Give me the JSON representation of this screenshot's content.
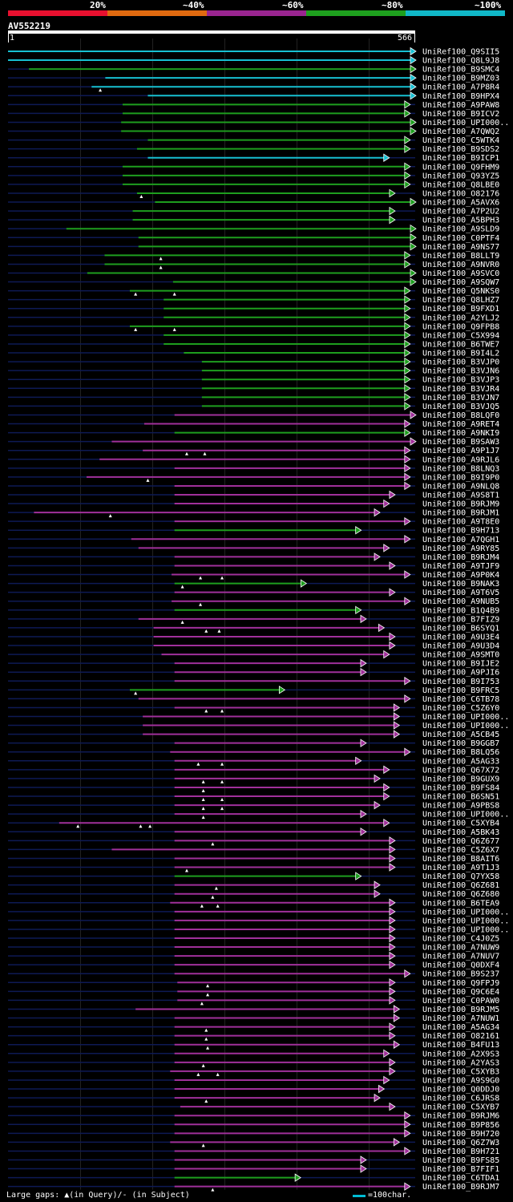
{
  "scale": {
    "labels": [
      "20%",
      "~40%",
      "~60%",
      "~80%",
      "~100%"
    ],
    "colors": [
      "#e8102f",
      "#e06a10",
      "#9a2590",
      "#1ea01e",
      "#10b8c8"
    ]
  },
  "query": {
    "id": "AV552219",
    "start": "1",
    "end": "566",
    "length": 566
  },
  "legend": {
    "text": "Large gaps: ▲(in Query)/- (in Subject)",
    "scale_text": "=100char."
  },
  "colors": {
    "cyan": "#17bfd1",
    "green": "#1e9e1e",
    "magenta": "#a0309a",
    "navy": "#0e1a55",
    "grid": "#222222"
  },
  "hits": [
    {
      "label": "UniRef100_Q9SII5",
      "s": 1,
      "e": 566,
      "c": "cyan",
      "m": []
    },
    {
      "label": "UniRef100_Q8L9J8",
      "s": 1,
      "e": 566,
      "c": "cyan",
      "m": []
    },
    {
      "label": "UniRef100_B9SMC4",
      "s": 30,
      "e": 566,
      "c": "green",
      "m": []
    },
    {
      "label": "UniRef100_B9MZ03",
      "s": 136,
      "e": 566,
      "c": "cyan",
      "m": []
    },
    {
      "label": "UniRef100_A7P8R4",
      "s": 117,
      "e": 566,
      "c": "cyan",
      "m": [
        129
      ]
    },
    {
      "label": "UniRef100_B9HPX4",
      "s": 195,
      "e": 566,
      "c": "cyan",
      "m": []
    },
    {
      "label": "UniRef100_A9PAW8",
      "s": 160,
      "e": 558,
      "c": "green",
      "m": []
    },
    {
      "label": "UniRef100_B9ICV2",
      "s": 160,
      "e": 558,
      "c": "green",
      "m": []
    },
    {
      "label": "UniRef100_UPI000..",
      "s": 158,
      "e": 566,
      "c": "green",
      "m": []
    },
    {
      "label": "UniRef100_A7QWQ2",
      "s": 158,
      "e": 566,
      "c": "green",
      "m": []
    },
    {
      "label": "UniRef100_C5WTK4",
      "s": 195,
      "e": 558,
      "c": "green",
      "m": []
    },
    {
      "label": "UniRef100_B9SDS2",
      "s": 180,
      "e": 558,
      "c": "green",
      "m": []
    },
    {
      "label": "UniRef100_B9ICP1",
      "s": 195,
      "e": 529,
      "c": "cyan",
      "m": []
    },
    {
      "label": "UniRef100_Q9FHM9",
      "s": 160,
      "e": 558,
      "c": "green",
      "m": []
    },
    {
      "label": "UniRef100_Q93YZ5",
      "s": 160,
      "e": 558,
      "c": "green",
      "m": []
    },
    {
      "label": "UniRef100_Q8LBE0",
      "s": 160,
      "e": 558,
      "c": "green",
      "m": []
    },
    {
      "label": "UniRef100_O82176",
      "s": 180,
      "e": 537,
      "c": "green",
      "m": [
        186
      ]
    },
    {
      "label": "UniRef100_A5AVX6",
      "s": 205,
      "e": 566,
      "c": "green",
      "m": []
    },
    {
      "label": "UniRef100_A7P2U2",
      "s": 174,
      "e": 537,
      "c": "green",
      "m": []
    },
    {
      "label": "UniRef100_A5BPH3",
      "s": 174,
      "e": 537,
      "c": "green",
      "m": []
    },
    {
      "label": "UniRef100_A9SLD9",
      "s": 82,
      "e": 566,
      "c": "green",
      "m": []
    },
    {
      "label": "UniRef100_C0PTF4",
      "s": 182,
      "e": 566,
      "c": "green",
      "m": []
    },
    {
      "label": "UniRef100_A9NS77",
      "s": 182,
      "e": 566,
      "c": "green",
      "m": []
    },
    {
      "label": "UniRef100_B8LLT9",
      "s": 135,
      "e": 558,
      "c": "green",
      "m": [
        213
      ]
    },
    {
      "label": "UniRef100_A9NVR0",
      "s": 135,
      "e": 558,
      "c": "green",
      "m": [
        213
      ]
    },
    {
      "label": "UniRef100_A9SVC0",
      "s": 111,
      "e": 566,
      "c": "green",
      "m": []
    },
    {
      "label": "UniRef100_A9SQW7",
      "s": 230,
      "e": 566,
      "c": "green",
      "m": []
    },
    {
      "label": "UniRef100_Q5NKS0",
      "s": 170,
      "e": 558,
      "c": "green",
      "m": [
        178,
        232
      ]
    },
    {
      "label": "UniRef100_Q8LHZ7",
      "s": 217,
      "e": 558,
      "c": "green",
      "m": []
    },
    {
      "label": "UniRef100_B9FXD1",
      "s": 217,
      "e": 558,
      "c": "green",
      "m": []
    },
    {
      "label": "UniRef100_A2YLJ2",
      "s": 217,
      "e": 558,
      "c": "green",
      "m": []
    },
    {
      "label": "UniRef100_Q9FPB8",
      "s": 170,
      "e": 558,
      "c": "green",
      "m": [
        178,
        232
      ]
    },
    {
      "label": "UniRef100_C5X994",
      "s": 217,
      "e": 558,
      "c": "green",
      "m": []
    },
    {
      "label": "UniRef100_B6TWE7",
      "s": 217,
      "e": 558,
      "c": "green",
      "m": []
    },
    {
      "label": "UniRef100_B9I4L2",
      "s": 245,
      "e": 558,
      "c": "green",
      "m": []
    },
    {
      "label": "UniRef100_B3VJP0",
      "s": 270,
      "e": 558,
      "c": "green",
      "m": []
    },
    {
      "label": "UniRef100_B3VJN6",
      "s": 270,
      "e": 558,
      "c": "green",
      "m": []
    },
    {
      "label": "UniRef100_B3VJP3",
      "s": 270,
      "e": 558,
      "c": "green",
      "m": []
    },
    {
      "label": "UniRef100_B3VJR4",
      "s": 270,
      "e": 558,
      "c": "green",
      "m": []
    },
    {
      "label": "UniRef100_B3VJN7",
      "s": 270,
      "e": 558,
      "c": "green",
      "m": []
    },
    {
      "label": "UniRef100_B3VJQ5",
      "s": 270,
      "e": 558,
      "c": "green",
      "m": []
    },
    {
      "label": "UniRef100_B8LQF0",
      "s": 232,
      "e": 566,
      "c": "magenta",
      "m": []
    },
    {
      "label": "UniRef100_A9RET4",
      "s": 190,
      "e": 558,
      "c": "magenta",
      "m": []
    },
    {
      "label": "UniRef100_A9NKI9",
      "s": 232,
      "e": 558,
      "c": "green",
      "m": []
    },
    {
      "label": "UniRef100_B9SAW3",
      "s": 145,
      "e": 566,
      "c": "magenta",
      "m": []
    },
    {
      "label": "UniRef100_A9P1J7",
      "s": 188,
      "e": 558,
      "c": "magenta",
      "m": [
        249,
        274
      ]
    },
    {
      "label": "UniRef100_A9RJL6",
      "s": 128,
      "e": 558,
      "c": "magenta",
      "m": []
    },
    {
      "label": "UniRef100_B8LNQ3",
      "s": 232,
      "e": 558,
      "c": "magenta",
      "m": []
    },
    {
      "label": "UniRef100_B9I9P0",
      "s": 110,
      "e": 558,
      "c": "magenta",
      "m": [
        195
      ]
    },
    {
      "label": "UniRef100_A9NLQ8",
      "s": 232,
      "e": 558,
      "c": "magenta",
      "m": []
    },
    {
      "label": "UniRef100_A9S8T1",
      "s": 232,
      "e": 537,
      "c": "magenta",
      "m": []
    },
    {
      "label": "UniRef100_B9RJM9",
      "s": 232,
      "e": 529,
      "c": "magenta",
      "m": []
    },
    {
      "label": "UniRef100_B9RJM1",
      "s": 37,
      "e": 516,
      "c": "magenta",
      "m": [
        143
      ]
    },
    {
      "label": "UniRef100_A9T8E0",
      "s": 232,
      "e": 558,
      "c": "magenta",
      "m": []
    },
    {
      "label": "UniRef100_B9H713",
      "s": 232,
      "e": 490,
      "c": "green",
      "m": []
    },
    {
      "label": "UniRef100_A7QGH1",
      "s": 172,
      "e": 558,
      "c": "magenta",
      "m": []
    },
    {
      "label": "UniRef100_A9RY85",
      "s": 182,
      "e": 529,
      "c": "magenta",
      "m": []
    },
    {
      "label": "UniRef100_B9RJM4",
      "s": 232,
      "e": 516,
      "c": "magenta",
      "m": []
    },
    {
      "label": "UniRef100_A9TJF9",
      "s": 232,
      "e": 537,
      "c": "magenta",
      "m": []
    },
    {
      "label": "UniRef100_A9P0K4",
      "s": 228,
      "e": 558,
      "c": "magenta",
      "m": [
        268,
        298
      ]
    },
    {
      "label": "UniRef100_B9NAK3",
      "s": 232,
      "e": 414,
      "c": "green",
      "m": [
        243
      ]
    },
    {
      "label": "UniRef100_A9T6V5",
      "s": 232,
      "e": 537,
      "c": "magenta",
      "m": []
    },
    {
      "label": "UniRef100_A9NUB5",
      "s": 228,
      "e": 558,
      "c": "magenta",
      "m": [
        268
      ]
    },
    {
      "label": "UniRef100_B1Q4B9",
      "s": 232,
      "e": 490,
      "c": "green",
      "m": []
    },
    {
      "label": "UniRef100_B7FIZ9",
      "s": 182,
      "e": 497,
      "c": "magenta",
      "m": [
        243
      ]
    },
    {
      "label": "UniRef100_B6SYQ1",
      "s": 203,
      "e": 522,
      "c": "magenta",
      "m": [
        276,
        294
      ]
    },
    {
      "label": "UniRef100_A9U3E4",
      "s": 203,
      "e": 537,
      "c": "magenta",
      "m": []
    },
    {
      "label": "UniRef100_A9U3D4",
      "s": 203,
      "e": 537,
      "c": "magenta",
      "m": []
    },
    {
      "label": "UniRef100_A9SMT0",
      "s": 214,
      "e": 529,
      "c": "magenta",
      "m": []
    },
    {
      "label": "UniRef100_B9IJE2",
      "s": 232,
      "e": 497,
      "c": "magenta",
      "m": []
    },
    {
      "label": "UniRef100_A9PJI6",
      "s": 232,
      "e": 497,
      "c": "magenta",
      "m": []
    },
    {
      "label": "UniRef100_B9I753",
      "s": 232,
      "e": 558,
      "c": "magenta",
      "m": []
    },
    {
      "label": "UniRef100_B9FRC5",
      "s": 170,
      "e": 384,
      "c": "green",
      "m": [
        178
      ]
    },
    {
      "label": "UniRef100_C6TB78",
      "s": 182,
      "e": 558,
      "c": "magenta",
      "m": []
    },
    {
      "label": "UniRef100_C5Z6Y0",
      "s": 232,
      "e": 543,
      "c": "magenta",
      "m": [
        276,
        298
      ]
    },
    {
      "label": "UniRef100_UPI000..",
      "s": 188,
      "e": 543,
      "c": "magenta",
      "m": []
    },
    {
      "label": "UniRef100_UPI000..",
      "s": 188,
      "e": 543,
      "c": "magenta",
      "m": []
    },
    {
      "label": "UniRef100_A5CB45",
      "s": 188,
      "e": 543,
      "c": "magenta",
      "m": []
    },
    {
      "label": "UniRef100_B9GGB7",
      "s": 232,
      "e": 497,
      "c": "magenta",
      "m": []
    },
    {
      "label": "UniRef100_B8LQ56",
      "s": 226,
      "e": 558,
      "c": "magenta",
      "m": []
    },
    {
      "label": "UniRef100_A5AG33",
      "s": 232,
      "e": 490,
      "c": "magenta",
      "m": [
        265,
        298
      ]
    },
    {
      "label": "UniRef100_Q67X72",
      "s": 232,
      "e": 529,
      "c": "magenta",
      "m": []
    },
    {
      "label": "UniRef100_B9GUX9",
      "s": 232,
      "e": 516,
      "c": "magenta",
      "m": [
        272,
        298
      ]
    },
    {
      "label": "UniRef100_B9FS84",
      "s": 232,
      "e": 529,
      "c": "magenta",
      "m": [
        272
      ]
    },
    {
      "label": "UniRef100_B6SN51",
      "s": 232,
      "e": 529,
      "c": "magenta",
      "m": [
        272,
        298
      ]
    },
    {
      "label": "UniRef100_A9PBS8",
      "s": 232,
      "e": 516,
      "c": "magenta",
      "m": [
        272,
        298
      ]
    },
    {
      "label": "UniRef100_UPI000..",
      "s": 232,
      "e": 497,
      "c": "magenta",
      "m": [
        272
      ]
    },
    {
      "label": "UniRef100_C5XYB4",
      "s": 72,
      "e": 529,
      "c": "magenta",
      "m": [
        98,
        185,
        198
      ]
    },
    {
      "label": "UniRef100_A5BK43",
      "s": 232,
      "e": 497,
      "c": "magenta",
      "m": []
    },
    {
      "label": "UniRef100_Q6Z677",
      "s": 232,
      "e": 537,
      "c": "magenta",
      "m": [
        285
      ]
    },
    {
      "label": "UniRef100_C5Z6X7",
      "s": 145,
      "e": 537,
      "c": "magenta",
      "m": []
    },
    {
      "label": "UniRef100_B8AIT6",
      "s": 232,
      "e": 537,
      "c": "magenta",
      "m": []
    },
    {
      "label": "UniRef100_A9T1J3",
      "s": 232,
      "e": 537,
      "c": "magenta",
      "m": [
        249
      ]
    },
    {
      "label": "UniRef100_Q7YX58",
      "s": 232,
      "e": 490,
      "c": "green",
      "m": []
    },
    {
      "label": "UniRef100_Q6Z681",
      "s": 232,
      "e": 516,
      "c": "magenta",
      "m": [
        290
      ]
    },
    {
      "label": "UniRef100_Q6Z680",
      "s": 232,
      "e": 516,
      "c": "magenta",
      "m": [
        285
      ]
    },
    {
      "label": "UniRef100_B6TEA9",
      "s": 226,
      "e": 537,
      "c": "magenta",
      "m": [
        270,
        292
      ]
    },
    {
      "label": "UniRef100_UPI000..",
      "s": 232,
      "e": 537,
      "c": "magenta",
      "m": []
    },
    {
      "label": "UniRef100_UPI000..",
      "s": 232,
      "e": 537,
      "c": "magenta",
      "m": []
    },
    {
      "label": "UniRef100_UPI000..",
      "s": 232,
      "e": 537,
      "c": "magenta",
      "m": []
    },
    {
      "label": "UniRef100_C4J0Z5",
      "s": 232,
      "e": 537,
      "c": "magenta",
      "m": []
    },
    {
      "label": "UniRef100_A7NUW9",
      "s": 232,
      "e": 537,
      "c": "magenta",
      "m": []
    },
    {
      "label": "UniRef100_A7NUV7",
      "s": 232,
      "e": 537,
      "c": "magenta",
      "m": []
    },
    {
      "label": "UniRef100_Q0DXF4",
      "s": 232,
      "e": 537,
      "c": "magenta",
      "m": []
    },
    {
      "label": "UniRef100_B9S237",
      "s": 232,
      "e": 558,
      "c": "magenta",
      "m": []
    },
    {
      "label": "UniRef100_Q9FPJ9",
      "s": 236,
      "e": 537,
      "c": "magenta",
      "m": [
        278
      ]
    },
    {
      "label": "UniRef100_Q9C6E4",
      "s": 236,
      "e": 537,
      "c": "magenta",
      "m": [
        278
      ]
    },
    {
      "label": "UniRef100_C0PAW0",
      "s": 236,
      "e": 537,
      "c": "magenta",
      "m": [
        270
      ]
    },
    {
      "label": "UniRef100_B9RJM5",
      "s": 178,
      "e": 543,
      "c": "magenta",
      "m": []
    },
    {
      "label": "UniRef100_A7NUW1",
      "s": 232,
      "e": 543,
      "c": "magenta",
      "m": []
    },
    {
      "label": "UniRef100_A5AG34",
      "s": 232,
      "e": 537,
      "c": "magenta",
      "m": [
        276
      ]
    },
    {
      "label": "UniRef100_O82161",
      "s": 232,
      "e": 537,
      "c": "magenta",
      "m": [
        276
      ]
    },
    {
      "label": "UniRef100_B4FU13",
      "s": 232,
      "e": 543,
      "c": "magenta",
      "m": [
        278
      ]
    },
    {
      "label": "UniRef100_A2X9S3",
      "s": 232,
      "e": 529,
      "c": "magenta",
      "m": []
    },
    {
      "label": "UniRef100_A2YAS3",
      "s": 232,
      "e": 537,
      "c": "magenta",
      "m": [
        272
      ]
    },
    {
      "label": "UniRef100_C5XYB3",
      "s": 226,
      "e": 537,
      "c": "magenta",
      "m": [
        265,
        292
      ]
    },
    {
      "label": "UniRef100_A9S9G0",
      "s": 232,
      "e": 529,
      "c": "magenta",
      "m": []
    },
    {
      "label": "UniRef100_Q0DDJ0",
      "s": 232,
      "e": 522,
      "c": "magenta",
      "m": []
    },
    {
      "label": "UniRef100_C6JRS8",
      "s": 232,
      "e": 516,
      "c": "magenta",
      "m": [
        276
      ]
    },
    {
      "label": "UniRef100_C5XYB7",
      "s": 240,
      "e": 537,
      "c": "magenta",
      "m": []
    },
    {
      "label": "UniRef100_B9RJM6",
      "s": 232,
      "e": 558,
      "c": "magenta",
      "m": []
    },
    {
      "label": "UniRef100_B9P856",
      "s": 232,
      "e": 558,
      "c": "magenta",
      "m": []
    },
    {
      "label": "UniRef100_B9H720",
      "s": 232,
      "e": 558,
      "c": "magenta",
      "m": []
    },
    {
      "label": "UniRef100_Q6Z7W3",
      "s": 226,
      "e": 543,
      "c": "magenta",
      "m": [
        272
      ]
    },
    {
      "label": "UniRef100_B9H721",
      "s": 232,
      "e": 558,
      "c": "magenta",
      "m": []
    },
    {
      "label": "UniRef100_B9FS85",
      "s": 232,
      "e": 497,
      "c": "magenta",
      "m": []
    },
    {
      "label": "UniRef100_B7FIF1",
      "s": 232,
      "e": 497,
      "c": "magenta",
      "m": []
    },
    {
      "label": "UniRef100_C6TDA1",
      "s": 232,
      "e": 406,
      "c": "green",
      "m": []
    },
    {
      "label": "UniRef100_B9RJM7",
      "s": 232,
      "e": 558,
      "c": "magenta",
      "m": [
        285
      ]
    }
  ]
}
